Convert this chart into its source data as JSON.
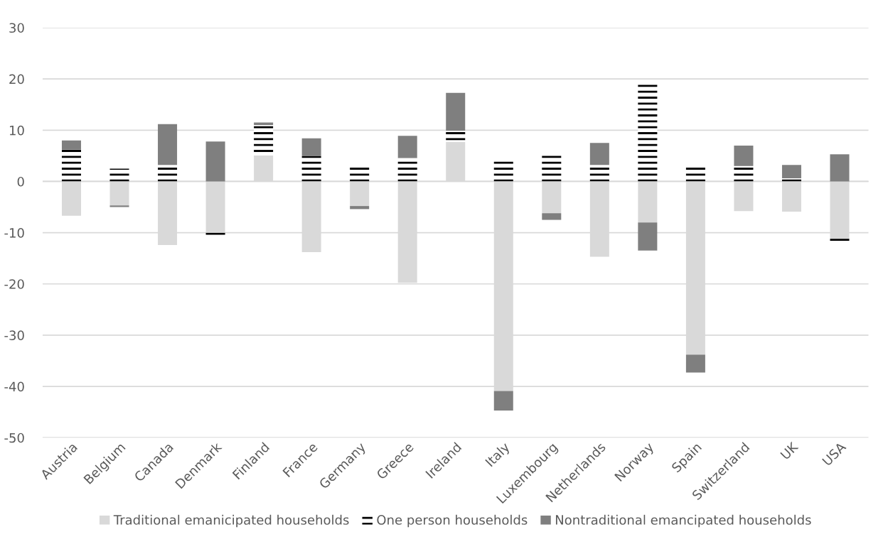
{
  "chart_data": {
    "type": "bar",
    "stacked": true,
    "categories": [
      "Austria",
      "Belgium",
      "Canada",
      "Denmark",
      "Finland",
      "France",
      "Germany",
      "Greece",
      "Ireland",
      "Italy",
      "Luxembourg",
      "Netherlands",
      "Norway",
      "Spain",
      "Switzerland",
      "UK",
      "USA"
    ],
    "series": [
      {
        "name": "Traditional emanicipated households",
        "color": "#d9d9d9",
        "values": [
          -6.7,
          -4.7,
          -12.4,
          -9.9,
          5.1,
          -13.8,
          -4.8,
          -19.8,
          7.7,
          -40.9,
          -6.2,
          -14.7,
          -8.0,
          -33.8,
          -5.8,
          -5.9,
          -11.2
        ]
      },
      {
        "name": "One person households",
        "color": "#000000",
        "values": [
          6.2,
          2.5,
          3.2,
          -0.8,
          5.9,
          4.9,
          3.2,
          4.6,
          2.2,
          4.2,
          5.1,
          3.2,
          18.9,
          3.2,
          3.0,
          0.6,
          -0.5
        ]
      },
      {
        "name": "Nontraditional emancipated households",
        "color": "#7f7f7f",
        "values": [
          1.8,
          -0.3,
          8.0,
          7.8,
          0.5,
          3.5,
          -0.6,
          4.3,
          7.4,
          -3.8,
          -1.3,
          4.3,
          -5.5,
          -3.5,
          4.0,
          2.6,
          5.3
        ]
      }
    ],
    "ylim": [
      -50,
      30
    ],
    "yticks": [
      -50,
      -40,
      -30,
      -20,
      -10,
      0,
      10,
      20,
      30
    ],
    "grid": "y",
    "legend": "bottom"
  }
}
